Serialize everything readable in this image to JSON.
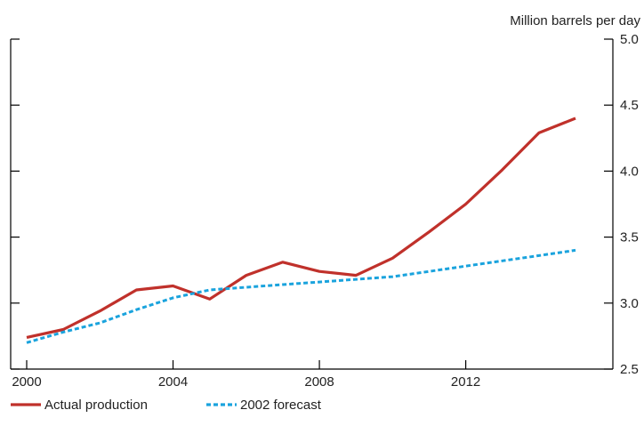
{
  "chart_data": {
    "type": "line",
    "title": "",
    "ylabel": "Million barrels per day",
    "xlabel": "",
    "xlim": [
      2000,
      2015
    ],
    "ylim": [
      2.5,
      5.0
    ],
    "x_ticks": [
      2000,
      2004,
      2008,
      2012
    ],
    "x_tick_labels": [
      "2000",
      "2004",
      "2008",
      "2012"
    ],
    "y_ticks": [
      2.5,
      3.0,
      3.5,
      4.0,
      4.5,
      5.0
    ],
    "y_tick_labels": [
      "2.5",
      "3.0",
      "3.5",
      "4.0",
      "4.5",
      "5.0"
    ],
    "grid": false,
    "legend_position": "bottom-left",
    "series": [
      {
        "name": "Actual production",
        "color": "#c0312b",
        "style": "solid",
        "x": [
          2000,
          2001,
          2002,
          2003,
          2004,
          2005,
          2006,
          2007,
          2008,
          2009,
          2010,
          2011,
          2012,
          2013,
          2014,
          2015
        ],
        "y": [
          2.74,
          2.8,
          2.94,
          3.1,
          3.13,
          3.03,
          3.21,
          3.31,
          3.24,
          3.21,
          3.34,
          3.54,
          3.75,
          4.01,
          4.29,
          4.4
        ]
      },
      {
        "name": "2002 forecast",
        "color": "#1aa3dd",
        "style": "dashed",
        "x": [
          2000,
          2001,
          2002,
          2003,
          2004,
          2005,
          2006,
          2007,
          2008,
          2009,
          2010,
          2011,
          2012,
          2013,
          2014,
          2015
        ],
        "y": [
          2.7,
          2.78,
          2.85,
          2.95,
          3.04,
          3.1,
          3.12,
          3.14,
          3.16,
          3.18,
          3.2,
          3.24,
          3.28,
          3.32,
          3.36,
          3.4
        ]
      }
    ]
  }
}
